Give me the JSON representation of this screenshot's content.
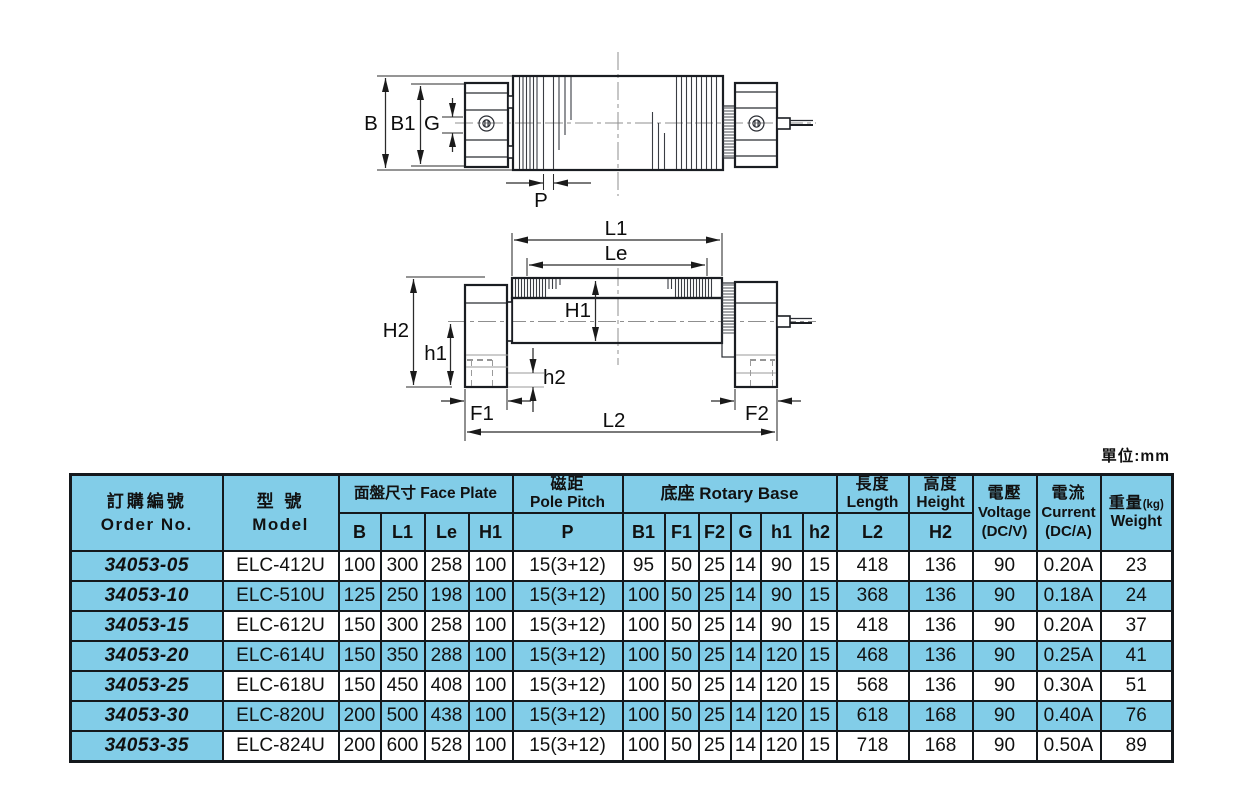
{
  "unit_label": "單位:mm",
  "colors": {
    "table_blue": "#82cde8",
    "table_border": "#14181c"
  },
  "diagram": {
    "top_view_labels": {
      "B": "B",
      "B1": "B1",
      "G": "G",
      "P": "P"
    },
    "side_view_labels": {
      "L1": "L1",
      "Le": "Le",
      "H1": "H1",
      "H2": "H2",
      "h1": "h1",
      "h2": "h2",
      "F1": "F1",
      "F2": "F2",
      "L2": "L2"
    }
  },
  "table": {
    "header": {
      "order_no": {
        "zh": "訂購編號",
        "en": "Order No."
      },
      "model": {
        "zh": "型 號",
        "en": "Model"
      },
      "face_plate": {
        "group": "面盤尺寸 Face Plate",
        "cols": [
          "B",
          "L1",
          "Le",
          "H1"
        ]
      },
      "pole_pitch": {
        "zh": "磁距",
        "en": "Pole Pitch",
        "col": "P"
      },
      "rotary_base": {
        "group": "底座 Rotary Base",
        "cols": [
          "B1",
          "F1",
          "F2",
          "G",
          "h1",
          "h2"
        ]
      },
      "length": {
        "zh": "長度",
        "en": "Length",
        "col": "L2"
      },
      "height": {
        "zh": "高度",
        "en": "Height",
        "col": "H2"
      },
      "voltage": {
        "zh": "電壓",
        "en": "Voltage",
        "unit": "(DC/V)"
      },
      "current": {
        "zh": "電流",
        "en": "Current",
        "unit": "(DC/A)"
      },
      "weight": {
        "zh": "重量",
        "unit": "(kg)",
        "en": "Weight"
      }
    },
    "columns": [
      "order_no",
      "model",
      "B",
      "L1",
      "Le",
      "H1",
      "P",
      "B1",
      "F1",
      "F2",
      "G",
      "h1",
      "h2",
      "L2",
      "H2",
      "voltage",
      "current",
      "weight"
    ],
    "rows": [
      {
        "order_no": "34053-05",
        "model": "ELC-412U",
        "B": "100",
        "L1": "300",
        "Le": "258",
        "H1": "100",
        "P": "15(3+12)",
        "B1": "95",
        "F1": "50",
        "F2": "25",
        "G": "14",
        "h1": "90",
        "h2": "15",
        "L2": "418",
        "H2": "136",
        "voltage": "90",
        "current": "0.20A",
        "weight": "23"
      },
      {
        "order_no": "34053-10",
        "model": "ELC-510U",
        "B": "125",
        "L1": "250",
        "Le": "198",
        "H1": "100",
        "P": "15(3+12)",
        "B1": "100",
        "F1": "50",
        "F2": "25",
        "G": "14",
        "h1": "90",
        "h2": "15",
        "L2": "368",
        "H2": "136",
        "voltage": "90",
        "current": "0.18A",
        "weight": "24"
      },
      {
        "order_no": "34053-15",
        "model": "ELC-612U",
        "B": "150",
        "L1": "300",
        "Le": "258",
        "H1": "100",
        "P": "15(3+12)",
        "B1": "100",
        "F1": "50",
        "F2": "25",
        "G": "14",
        "h1": "90",
        "h2": "15",
        "L2": "418",
        "H2": "136",
        "voltage": "90",
        "current": "0.20A",
        "weight": "37"
      },
      {
        "order_no": "34053-20",
        "model": "ELC-614U",
        "B": "150",
        "L1": "350",
        "Le": "288",
        "H1": "100",
        "P": "15(3+12)",
        "B1": "100",
        "F1": "50",
        "F2": "25",
        "G": "14",
        "h1": "120",
        "h2": "15",
        "L2": "468",
        "H2": "136",
        "voltage": "90",
        "current": "0.25A",
        "weight": "41"
      },
      {
        "order_no": "34053-25",
        "model": "ELC-618U",
        "B": "150",
        "L1": "450",
        "Le": "408",
        "H1": "100",
        "P": "15(3+12)",
        "B1": "100",
        "F1": "50",
        "F2": "25",
        "G": "14",
        "h1": "120",
        "h2": "15",
        "L2": "568",
        "H2": "136",
        "voltage": "90",
        "current": "0.30A",
        "weight": "51"
      },
      {
        "order_no": "34053-30",
        "model": "ELC-820U",
        "B": "200",
        "L1": "500",
        "Le": "438",
        "H1": "100",
        "P": "15(3+12)",
        "B1": "100",
        "F1": "50",
        "F2": "25",
        "G": "14",
        "h1": "120",
        "h2": "15",
        "L2": "618",
        "H2": "168",
        "voltage": "90",
        "current": "0.40A",
        "weight": "76"
      },
      {
        "order_no": "34053-35",
        "model": "ELC-824U",
        "B": "200",
        "L1": "600",
        "Le": "528",
        "H1": "100",
        "P": "15(3+12)",
        "B1": "100",
        "F1": "50",
        "F2": "25",
        "G": "14",
        "h1": "120",
        "h2": "15",
        "L2": "718",
        "H2": "168",
        "voltage": "90",
        "current": "0.50A",
        "weight": "89"
      }
    ]
  }
}
